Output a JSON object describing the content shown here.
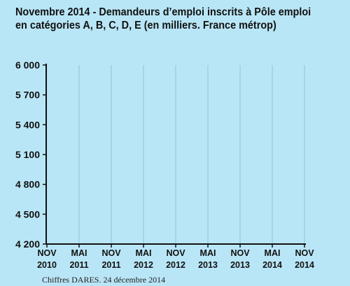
{
  "title_lines": [
    "Novembre 2014 - Demandeurs d’emploi inscrits à Pôle emploi",
    "en catégories A, B, C, D, E (en milliers. France métrop)"
  ],
  "source": "Chiffres DARES. 24 décembre 2014",
  "colors": {
    "background": "#b9e6f6",
    "gridline": "#9ccfe6",
    "axis": "#111111"
  },
  "chart_data": {
    "type": "line",
    "title": "Novembre 2014 - Demandeurs d’emploi inscrits à Pôle emploi en catégories A, B, C, D, E (en milliers. France métrop)",
    "xlabel": "",
    "ylabel": "",
    "ylim": [
      4200,
      6000
    ],
    "y_ticks": [
      4200,
      4500,
      4800,
      5100,
      5400,
      5700,
      6000
    ],
    "y_tick_labels": [
      "4 200",
      "4 500",
      "4 800",
      "5 100",
      "5 400",
      "5 700",
      "6 000"
    ],
    "x_ticks": [
      {
        "month": "NOV",
        "year": "2010"
      },
      {
        "month": "MAI",
        "year": "2011"
      },
      {
        "month": "NOV",
        "year": "2011"
      },
      {
        "month": "MAI",
        "year": "2012"
      },
      {
        "month": "NOV",
        "year": "2012"
      },
      {
        "month": "MAI",
        "year": "2013"
      },
      {
        "month": "NOV",
        "year": "2013"
      },
      {
        "month": "MAI",
        "year": "2014"
      },
      {
        "month": "NOV",
        "year": "2014"
      }
    ],
    "grid": true,
    "series": []
  }
}
